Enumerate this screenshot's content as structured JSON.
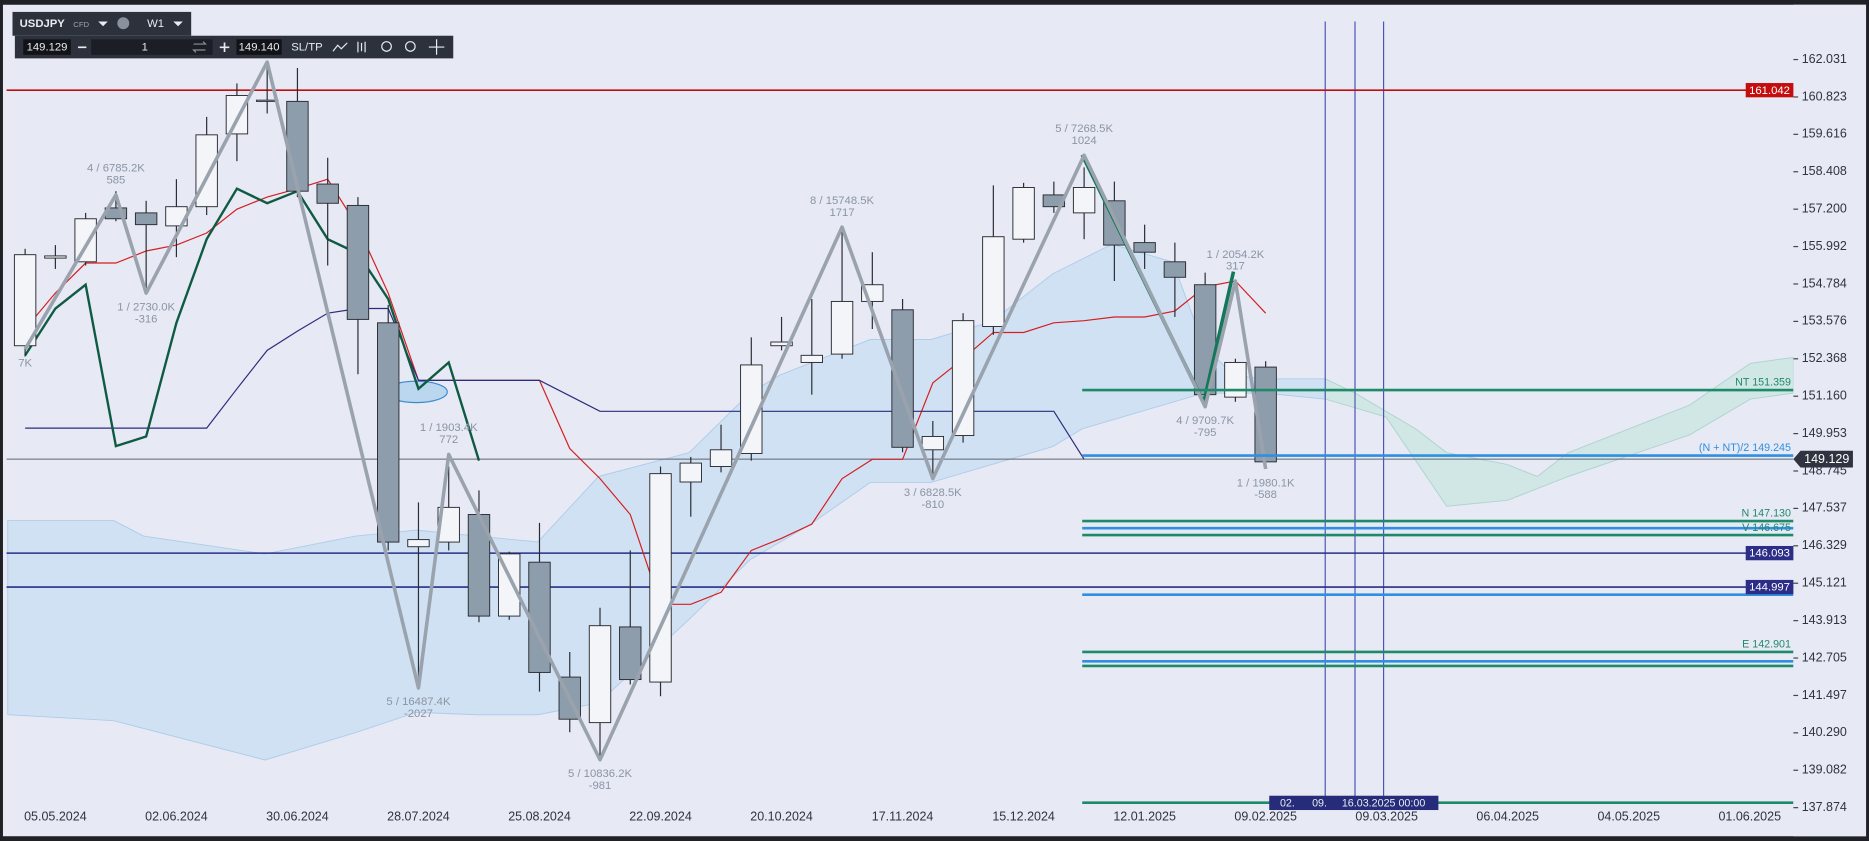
{
  "toolbar": {
    "symbol": "USDJPY",
    "market": "CFD",
    "timeframe": "W1",
    "bid": "149.129",
    "lots": "1",
    "ask": "149.140",
    "sltp": "SL/TP"
  },
  "chart_data": {
    "type": "candlestick",
    "categories": [
      null,
      "05.05.2024",
      null,
      null,
      null,
      "02.06.2024",
      null,
      null,
      null,
      "30.06.2024",
      null,
      null,
      null,
      "28.07.2024",
      null,
      null,
      null,
      "25.08.2024",
      null,
      null,
      null,
      "22.09.2024",
      null,
      null,
      null,
      "20.10.2024",
      null,
      null,
      null,
      "17.11.2024",
      null,
      null,
      null,
      "15.12.2024",
      null,
      null,
      null,
      "12.01.2025",
      null,
      null,
      null,
      "09.02.2025",
      null,
      null,
      null,
      "09.03.2025",
      null,
      null,
      null,
      "06.04.2025",
      null,
      null,
      null,
      "04.05.2025",
      null,
      null,
      null,
      "01.06.2025"
    ],
    "open": [
      152.79,
      155.62,
      155.5,
      157.24,
      157.08,
      156.66,
      157.28,
      159.63,
      160.68,
      160.68,
      158.01,
      157.32,
      153.53,
      146.3,
      146.45,
      147.34,
      144.06,
      145.8,
      142.09,
      140.62,
      143.71,
      141.93,
      148.39,
      148.89,
      149.31,
      152.79,
      152.25,
      152.52,
      154.22,
      153.95,
      149.43,
      149.89,
      153.41,
      156.23,
      157.66,
      157.08,
      157.47,
      156.12,
      155.5,
      154.76,
      151.13,
      152.1,
      null,
      null,
      null,
      null,
      null,
      null,
      null,
      null,
      null,
      null,
      null,
      null,
      null,
      null,
      null,
      null
    ],
    "high": [
      155.92,
      156.04,
      157.08,
      157.78,
      157.47,
      158.17,
      160.18,
      161.26,
      161.95,
      161.76,
      158.86,
      157.59,
      154.11,
      147.73,
      148.89,
      148.12,
      146.14,
      147.07,
      142.9,
      144.33,
      146.18,
      148.89,
      149.2,
      150.24,
      153.06,
      153.72,
      154.3,
      156.62,
      155.81,
      154.3,
      150.36,
      153.84,
      157.97,
      158.05,
      158.09,
      158.55,
      158.09,
      156.7,
      156.12,
      155.15,
      152.37,
      152.29,
      null,
      null,
      null,
      null,
      null,
      null,
      null,
      null,
      null,
      null,
      null,
      null,
      null,
      null,
      null,
      null
    ],
    "low": [
      152.44,
      155.27,
      155.38,
      156.81,
      154.49,
      155.65,
      157.01,
      158.75,
      160.29,
      157.59,
      155.38,
      151.87,
      146.18,
      141.74,
      146.18,
      143.86,
      143.94,
      141.62,
      140.31,
      139.42,
      141.85,
      141.47,
      147.27,
      148.7,
      149.08,
      152.64,
      151.21,
      152.37,
      153.33,
      149.35,
      148.5,
      149.66,
      153.14,
      156.12,
      157.08,
      156.23,
      154.88,
      155.27,
      153.72,
      150.82,
      150.98,
      148.81,
      null,
      null,
      null,
      null,
      null,
      null,
      null,
      null,
      null,
      null,
      null,
      null,
      null,
      null,
      null,
      null
    ],
    "close": [
      155.73,
      155.69,
      156.89,
      156.89,
      156.7,
      157.28,
      159.6,
      160.87,
      160.72,
      157.78,
      157.39,
      153.64,
      146.45,
      146.53,
      147.57,
      144.06,
      146.07,
      142.24,
      140.73,
      143.75,
      142.01,
      148.66,
      149.0,
      149.43,
      152.17,
      152.91,
      152.48,
      154.22,
      154.76,
      149.51,
      149.86,
      153.6,
      156.31,
      157.9,
      157.28,
      157.9,
      156.04,
      155.81,
      155.0,
      151.21,
      152.25,
      149.04,
      null,
      null,
      null,
      null,
      null,
      null,
      null,
      null,
      null,
      null,
      null,
      null,
      null,
      null,
      null,
      null
    ],
    "up_color": "#f3f5f9",
    "down_color": "#8e9dac",
    "wick_color": "#2a2d33",
    "ylim": [
      137.028,
      163.954
    ],
    "yticks": [
      162.031,
      160.823,
      159.616,
      158.408,
      {
        "value": 157.2,
        "label": "157.200"
      },
      155.992,
      154.784,
      153.576,
      152.368,
      {
        "value": 151.16,
        "label": "151.160"
      },
      149.953,
      148.745,
      147.537,
      146.329,
      145.121,
      143.913,
      142.705,
      141.497,
      {
        "value": 140.29,
        "label": "140.290"
      },
      139.082,
      137.874
    ],
    "series": [
      {
        "color": "#d42020",
        "values": [
          153.33,
          154.49,
          155.46,
          155.46,
          155.85,
          156.04,
          156.43,
          157.2,
          157.59,
          157.86,
          158.17,
          156.62,
          154.49,
          151.67,
          151.67,
          151.67,
          151.67,
          151.67,
          149.47,
          148.5,
          147.34,
          144.44,
          144.44,
          144.83,
          146.18,
          146.57,
          147.03,
          148.5,
          149.12,
          149.12,
          151.59,
          152.37,
          153.22,
          153.22,
          153.53,
          153.6,
          153.72,
          153.72,
          153.91,
          154.69,
          154.88,
          153.84,
          null,
          null,
          null,
          null,
          null,
          null,
          null,
          null,
          null,
          null,
          null,
          null,
          null,
          null,
          null,
          null
        ]
      },
      {
        "color": "#2b2d7c",
        "values": [
          150.13,
          150.13,
          150.13,
          150.13,
          150.13,
          150.13,
          150.13,
          151.4,
          152.64,
          153.26,
          153.84,
          153.99,
          153.99,
          151.67,
          151.67,
          151.67,
          151.67,
          151.67,
          151.17,
          150.67,
          150.67,
          150.67,
          150.67,
          150.67,
          150.67,
          150.67,
          150.67,
          150.67,
          150.67,
          150.67,
          150.67,
          150.67,
          150.67,
          150.67,
          150.67,
          149.12,
          null,
          null,
          null,
          null,
          null,
          null,
          null,
          null,
          null,
          null,
          null,
          null,
          null,
          null,
          null,
          null,
          null,
          null,
          null,
          null,
          null,
          null
        ]
      },
      {
        "color": "#0f5a42",
        "values": [
          152.48,
          153.99,
          154.76,
          149.55,
          149.86,
          153.53,
          156.23,
          157.86,
          157.39,
          157.78,
          156.23,
          155.77,
          154.3,
          151.4,
          152.25,
          149.08,
          null,
          null,
          null,
          null,
          null,
          null,
          null,
          null,
          null,
          null,
          null,
          null,
          null,
          null,
          null,
          null,
          null,
          null,
          null,
          null,
          null,
          null,
          null,
          null,
          null,
          null,
          null,
          null,
          null,
          null,
          null,
          null,
          null,
          null,
          null,
          null,
          null,
          null,
          null,
          null,
          null,
          null
        ]
      }
    ],
    "zigzag": {
      "color": "#9aa3ad",
      "points": [
        {
          "x": 0,
          "price": 152.68,
          "label": "7K"
        },
        {
          "x": 3,
          "price": 157.66,
          "label": "4 / 6785.2K",
          "change": 585
        },
        {
          "x": 4,
          "price": 154.49,
          "label": "1 / 2730.0K",
          "change": -316
        },
        {
          "x": 8,
          "price": 161.95
        },
        {
          "x": 13,
          "price": 141.74,
          "label": "5 / 16487.4K",
          "change": -2027
        },
        {
          "x": 14,
          "price": 149.28,
          "label": "1 / 1903.4K",
          "change": 772
        },
        {
          "x": 19,
          "price": 139.42,
          "label": "5 / 10836.2K",
          "change": -981
        },
        {
          "x": 27,
          "price": 156.62,
          "label": "8 / 15748.5K",
          "change": 1717
        },
        {
          "x": 30,
          "price": 148.5,
          "label": "3 / 6828.5K",
          "change": -810
        },
        {
          "x": 35,
          "price": 158.94,
          "label": "5 / 7268.5K",
          "change": 1024
        },
        {
          "x": 39,
          "price": 150.82,
          "label": "4 / 9709.7K",
          "change": -795
        },
        {
          "x": 40,
          "price": 154.88,
          "label": "1 / 2054.2K",
          "change": 317
        },
        {
          "x": 41,
          "price": 148.81,
          "label": "1 / 1980.1K",
          "change": -588
        }
      ]
    },
    "hlines": [
      {
        "value": 161.042,
        "color": "#c40d0d"
      },
      {
        "value": 146.093,
        "color": "#2b2d86"
      },
      {
        "value": 144.997,
        "color": "#2b2d86"
      }
    ],
    "current_price": {
      "value": 149.129,
      "color": "#5d6470"
    },
    "levels": [
      {
        "value": 151.359,
        "color": "#1f8a6a",
        "label": "NT 151.359"
      },
      {
        "value": 149.245,
        "color": "#2f8fe0",
        "label": "(N + NT)/2 149.245"
      },
      {
        "value": 147.13,
        "color": "#1f8a6a",
        "label": "N 147.130"
      },
      {
        "value": 146.9,
        "color": "#2f8fe0"
      },
      {
        "value": 146.675,
        "color": "#1f8a6a",
        "label": "V 146.675"
      },
      {
        "value": 144.75,
        "color": "#2f8fe0"
      },
      {
        "value": 142.901,
        "color": "#1f8a6a",
        "label": "E 142.901"
      },
      {
        "value": 142.6,
        "color": "#2f8fe0"
      },
      {
        "value": 142.45,
        "color": "#1f8a6a"
      },
      {
        "value": 138.035,
        "color": "#1f8a6a"
      }
    ],
    "marker": {
      "label": "16.03.2025 00:00",
      "cursor": [
        "02.",
        "09."
      ]
    }
  }
}
